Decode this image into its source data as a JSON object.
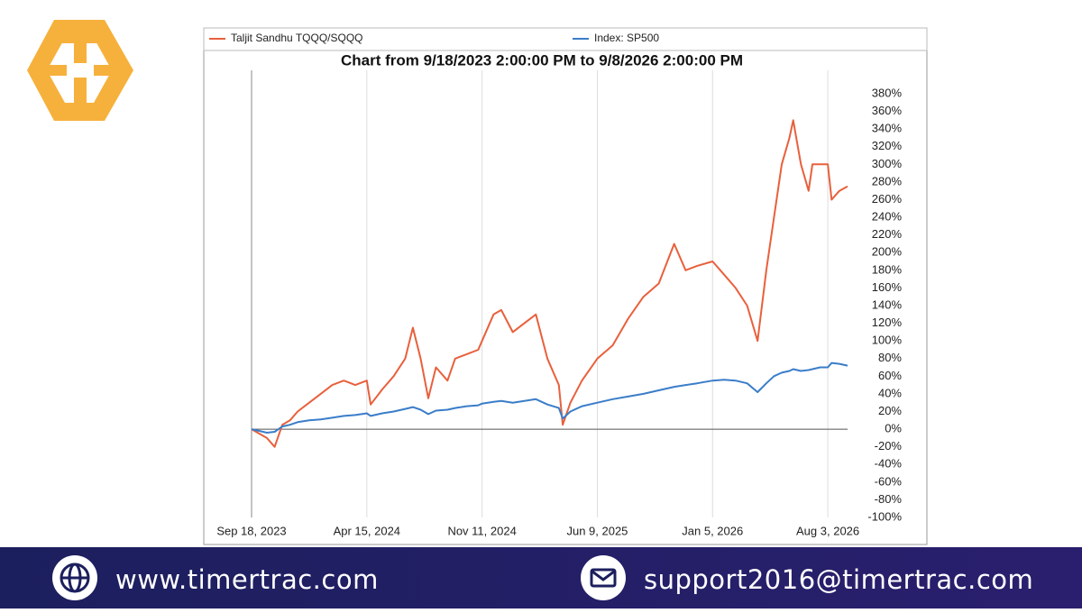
{
  "chart_data": {
    "type": "line",
    "title": "Chart from 9/18/2023 2:00:00 PM to 9/8/2026 2:00:00 PM",
    "x": [
      "2023-09-18",
      "2023-10-02",
      "2023-10-16",
      "2023-10-30",
      "2023-11-13",
      "2023-11-27",
      "2023-12-11",
      "2024-01-01",
      "2024-01-22",
      "2024-02-12",
      "2024-03-04",
      "2024-03-25",
      "2024-04-15",
      "2024-04-22",
      "2024-05-13",
      "2024-06-03",
      "2024-06-24",
      "2024-07-08",
      "2024-07-22",
      "2024-08-05",
      "2024-08-19",
      "2024-09-09",
      "2024-09-23",
      "2024-10-14",
      "2024-11-04",
      "2024-11-11",
      "2024-12-02",
      "2024-12-16",
      "2025-01-06",
      "2025-01-27",
      "2025-02-17",
      "2025-03-10",
      "2025-03-31",
      "2025-04-07",
      "2025-04-21",
      "2025-05-12",
      "2025-06-09",
      "2025-07-07",
      "2025-08-04",
      "2025-09-01",
      "2025-09-29",
      "2025-10-27",
      "2025-11-17",
      "2025-12-08",
      "2026-01-05",
      "2026-01-26",
      "2026-02-16",
      "2026-03-09",
      "2026-03-28",
      "2026-04-13",
      "2026-04-27",
      "2026-05-11",
      "2026-05-25",
      "2026-06-01",
      "2026-06-15",
      "2026-06-29",
      "2026-07-06",
      "2026-07-20",
      "2026-08-03",
      "2026-08-10",
      "2026-08-24",
      "2026-09-08"
    ],
    "series": [
      {
        "name": "Taljit Sandhu TQQQ/SQQQ",
        "color": "#e8603c",
        "values": [
          0,
          -5,
          -10,
          -20,
          5,
          10,
          20,
          30,
          40,
          50,
          55,
          50,
          55,
          28,
          45,
          60,
          80,
          115,
          80,
          35,
          70,
          55,
          80,
          85,
          90,
          100,
          130,
          135,
          110,
          120,
          130,
          80,
          50,
          5,
          30,
          55,
          80,
          95,
          125,
          150,
          165,
          210,
          180,
          185,
          190,
          175,
          160,
          140,
          100,
          180,
          240,
          300,
          330,
          350,
          300,
          270,
          300,
          300,
          300,
          260,
          270,
          275
        ]
      },
      {
        "name": "Index: SP500",
        "color": "#3a7dc9",
        "values": [
          0,
          -2,
          -4,
          -3,
          3,
          5,
          8,
          10,
          11,
          13,
          15,
          16,
          18,
          15,
          18,
          20,
          23,
          25,
          22,
          17,
          21,
          22,
          24,
          26,
          27,
          29,
          31,
          32,
          30,
          32,
          34,
          28,
          24,
          12,
          20,
          26,
          30,
          34,
          37,
          40,
          44,
          48,
          50,
          52,
          55,
          56,
          55,
          52,
          42,
          52,
          60,
          64,
          66,
          68,
          66,
          67,
          68,
          70,
          70,
          75,
          74,
          72
        ]
      }
    ],
    "xlim": [
      "2023-09-18",
      "2026-09-08"
    ],
    "xticks": [
      {
        "value": "2023-09-18",
        "label": "Sep 18, 2023"
      },
      {
        "value": "2024-04-15",
        "label": "Apr 15, 2024"
      },
      {
        "value": "2024-11-11",
        "label": "Nov 11, 2024"
      },
      {
        "value": "2025-06-09",
        "label": "Jun 9, 2025"
      },
      {
        "value": "2026-01-05",
        "label": "Jan 5, 2026"
      },
      {
        "value": "2026-08-03",
        "label": "Aug 3, 2026"
      }
    ],
    "ylim": [
      -100,
      380
    ],
    "yticks": [
      {
        "value": -100,
        "label": "-100%"
      },
      {
        "value": -80,
        "label": "-80%"
      },
      {
        "value": -60,
        "label": "-60%"
      },
      {
        "value": -40,
        "label": "-40%"
      },
      {
        "value": -20,
        "label": "-20%"
      },
      {
        "value": 0,
        "label": "0%"
      },
      {
        "value": 20,
        "label": "20%"
      },
      {
        "value": 40,
        "label": "40%"
      },
      {
        "value": 60,
        "label": "60%"
      },
      {
        "value": 80,
        "label": "80%"
      },
      {
        "value": 100,
        "label": "100%"
      },
      {
        "value": 120,
        "label": "120%"
      },
      {
        "value": 140,
        "label": "140%"
      },
      {
        "value": 160,
        "label": "160%"
      },
      {
        "value": 180,
        "label": "180%"
      },
      {
        "value": 200,
        "label": "200%"
      },
      {
        "value": 220,
        "label": "220%"
      },
      {
        "value": 240,
        "label": "240%"
      },
      {
        "value": 260,
        "label": "260%"
      },
      {
        "value": 280,
        "label": "280%"
      },
      {
        "value": 300,
        "label": "300%"
      },
      {
        "value": 320,
        "label": "320%"
      },
      {
        "value": 340,
        "label": "340%"
      },
      {
        "value": 360,
        "label": "360%"
      },
      {
        "value": 380,
        "label": "380%"
      }
    ],
    "grid": true,
    "legend": "top"
  },
  "footer": {
    "website": "www.timertrac.com",
    "email": "support2016@timertrac.com"
  }
}
